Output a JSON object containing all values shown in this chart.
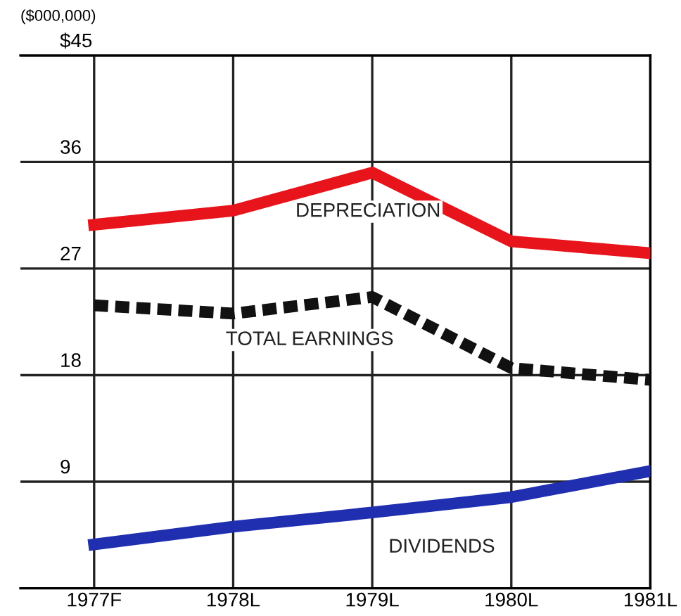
{
  "chart_data": {
    "type": "line",
    "ylabel": "($000,000)",
    "categories": [
      "1977F",
      "1978L",
      "1979L",
      "1980L",
      "1981L"
    ],
    "series": [
      {
        "name": "DEPRECIATION",
        "color": "#e8141c",
        "line_style": "solid",
        "values": [
          30.7,
          31.9,
          35.1,
          29.3,
          28.3
        ]
      },
      {
        "name": "TOTAL EARNINGS",
        "color": "#111111",
        "line_style": "dashed",
        "values": [
          23.9,
          23.2,
          24.6,
          18.6,
          17.6
        ]
      },
      {
        "name": "DIVIDENDS",
        "color": "#1f2fb0",
        "line_style": "solid",
        "values": [
          3.7,
          5.2,
          6.4,
          7.7,
          9.9
        ]
      }
    ],
    "ylim": [
      0,
      45
    ],
    "yticks": [
      {
        "value": 0,
        "label": null
      },
      9,
      18,
      27,
      36,
      {
        "value": 45,
        "label": "$45"
      }
    ],
    "grid": true,
    "legend": false,
    "marker": "none"
  }
}
